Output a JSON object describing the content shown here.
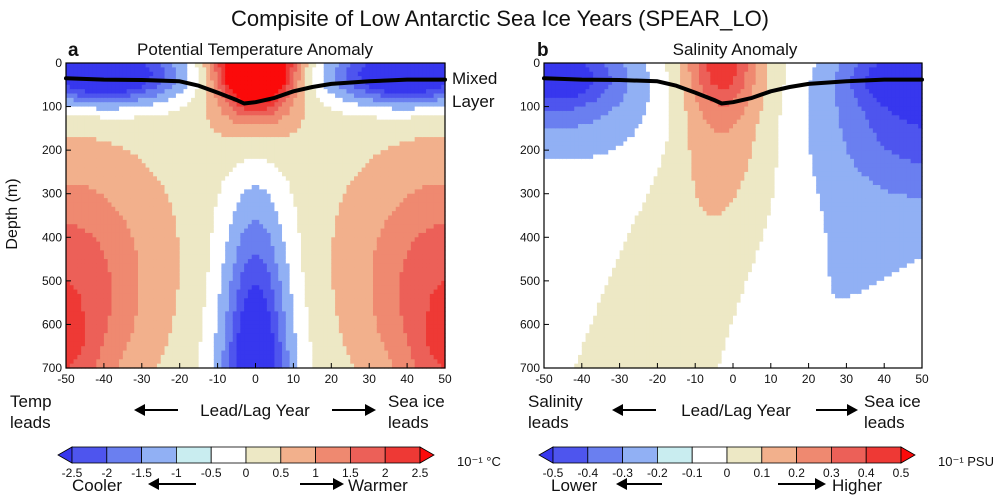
{
  "chart_data": {
    "type": "heatmap",
    "title": "Compisite of Low Antarctic Sea Ice Years (SPEAR_LO)",
    "mixed_layer_label": [
      "Mixed",
      "Layer"
    ],
    "mixed_layer_depth": {
      "x": [
        -50,
        -40,
        -30,
        -20,
        -15,
        -10,
        -5,
        -3,
        0,
        5,
        10,
        15,
        20,
        30,
        40,
        50
      ],
      "y": [
        35,
        38,
        39,
        42,
        52,
        68,
        85,
        93,
        90,
        80,
        65,
        55,
        48,
        42,
        38,
        38
      ]
    },
    "x_ticks": [
      -50,
      -40,
      -30,
      -20,
      -10,
      0,
      10,
      20,
      30,
      40,
      50
    ],
    "y_ticks": [
      0,
      100,
      200,
      300,
      400,
      500,
      600,
      700
    ],
    "xlim": [
      -50,
      50
    ],
    "ylim": [
      0,
      700
    ],
    "panels": [
      {
        "letter": "a",
        "subtitle": "Potential Temperature Anomaly",
        "ylabel": "Depth (m)",
        "xlabel": "Lead/Lag Year",
        "left_note": [
          "Temp",
          "leads"
        ],
        "right_note": [
          "Sea ice",
          "leads"
        ],
        "unit": "10⁻¹ °C",
        "colorbar_ticks": [
          "-2.5",
          "-2",
          "-1.5",
          "-1",
          "-0.5",
          "0",
          "0.5",
          "1",
          "1.5",
          "2",
          "2.5"
        ],
        "low_note": "Cooler",
        "high_note": "Warmer",
        "field": [
          {
            "kind": "ell",
            "cx": 0,
            "cy": -70,
            "rx": 13,
            "ry": 230,
            "v": 1.2
          },
          {
            "kind": "ell",
            "cx": 0,
            "cy": -60,
            "rx": 11,
            "ry": 180,
            "v": 2.1
          },
          {
            "kind": "ell",
            "cx": 0,
            "cy": 20,
            "rx": 9,
            "ry": 75,
            "v": 3.0
          },
          {
            "kind": "ell",
            "cx": -40,
            "cy": 25,
            "rx": 30,
            "ry": 75,
            "v": -1.2
          },
          {
            "kind": "ell",
            "cx": -40,
            "cy": 30,
            "rx": 16,
            "ry": 60,
            "v": -2.2
          },
          {
            "kind": "ell",
            "cx": 40,
            "cy": 25,
            "rx": 30,
            "ry": 75,
            "v": -1.2
          },
          {
            "kind": "ell",
            "cx": 40,
            "cy": 30,
            "rx": 16,
            "ry": 60,
            "v": -2.2
          },
          {
            "kind": "ell",
            "cx": 0,
            "cy": 800,
            "rx": 13,
            "ry": 530,
            "v": -0.8
          },
          {
            "kind": "ell",
            "cx": 0,
            "cy": 760,
            "rx": 9,
            "ry": 460,
            "v": -1.7
          },
          {
            "kind": "ell",
            "cx": 0,
            "cy": 760,
            "rx": 6,
            "ry": 300,
            "v": -0.9
          },
          {
            "kind": "ell",
            "cx": -50,
            "cy": 500,
            "rx": 27,
            "ry": 310,
            "v": 1.1
          },
          {
            "kind": "ell",
            "cx": -50,
            "cy": 560,
            "rx": 16,
            "ry": 250,
            "v": 0.8
          },
          {
            "kind": "ell",
            "cx": -50,
            "cy": 680,
            "rx": 8,
            "ry": 100,
            "v": 0.6
          },
          {
            "kind": "ell",
            "cx": 50,
            "cy": 500,
            "rx": 27,
            "ry": 310,
            "v": 1.1
          },
          {
            "kind": "ell",
            "cx": 50,
            "cy": 560,
            "rx": 16,
            "ry": 250,
            "v": 0.8
          },
          {
            "kind": "ell",
            "cx": 50,
            "cy": 680,
            "rx": 8,
            "ry": 100,
            "v": 0.6
          },
          {
            "kind": "ell",
            "cx": 0,
            "cy": 350,
            "rx": 60,
            "ry": 500,
            "v": 0.25
          }
        ]
      },
      {
        "letter": "b",
        "subtitle": "Salinity Anomaly",
        "ylabel": "",
        "xlabel": "Lead/Lag Year",
        "left_note": [
          "Salinity",
          "leads"
        ],
        "right_note": [
          "Sea ice",
          "leads"
        ],
        "unit": "10⁻¹ PSU",
        "colorbar_ticks": [
          "-0.5",
          "-0.4",
          "-0.3",
          "-0.2",
          "-0.1",
          "0",
          "0.1",
          "0.2",
          "0.3",
          "0.4",
          "0.5"
        ],
        "low_note": "Lower",
        "high_note": "Higher",
        "field": [
          {
            "kind": "ell",
            "cx": -3,
            "cy": -100,
            "rx": 17,
            "ry": 620,
            "v": 0.13
          },
          {
            "kind": "ell",
            "cx": -3,
            "cy": -60,
            "rx": 13,
            "ry": 430,
            "v": 0.09
          },
          {
            "kind": "ell",
            "cx": -3,
            "cy": 0,
            "rx": 10,
            "ry": 200,
            "v": 0.12
          },
          {
            "kind": "ell",
            "cx": -3,
            "cy": 20,
            "rx": 8,
            "ry": 75,
            "v": 0.18
          },
          {
            "kind": "ell",
            "cx": -50,
            "cy": 60,
            "rx": 38,
            "ry": 180,
            "v": -0.18
          },
          {
            "kind": "ell",
            "cx": -50,
            "cy": 60,
            "rx": 20,
            "ry": 110,
            "v": -0.12
          },
          {
            "kind": "ell",
            "cx": -45,
            "cy": 30,
            "rx": 14,
            "ry": 60,
            "v": -0.25
          },
          {
            "kind": "ell",
            "cx": 50,
            "cy": 100,
            "rx": 30,
            "ry": 220,
            "v": -0.2
          },
          {
            "kind": "ell",
            "cx": 50,
            "cy": 100,
            "rx": 20,
            "ry": 150,
            "v": -0.12
          },
          {
            "kind": "ell",
            "cx": 45,
            "cy": 30,
            "rx": 14,
            "ry": 60,
            "v": -0.25
          },
          {
            "kind": "band",
            "x0": 12,
            "y0": 700,
            "x1": 50,
            "y1": 250,
            "w": 14,
            "v": -0.1
          },
          {
            "kind": "band",
            "x0": -50,
            "y0": 420,
            "x1": -18,
            "y1": 120,
            "w": 5,
            "v": -0.02
          }
        ]
      }
    ]
  }
}
